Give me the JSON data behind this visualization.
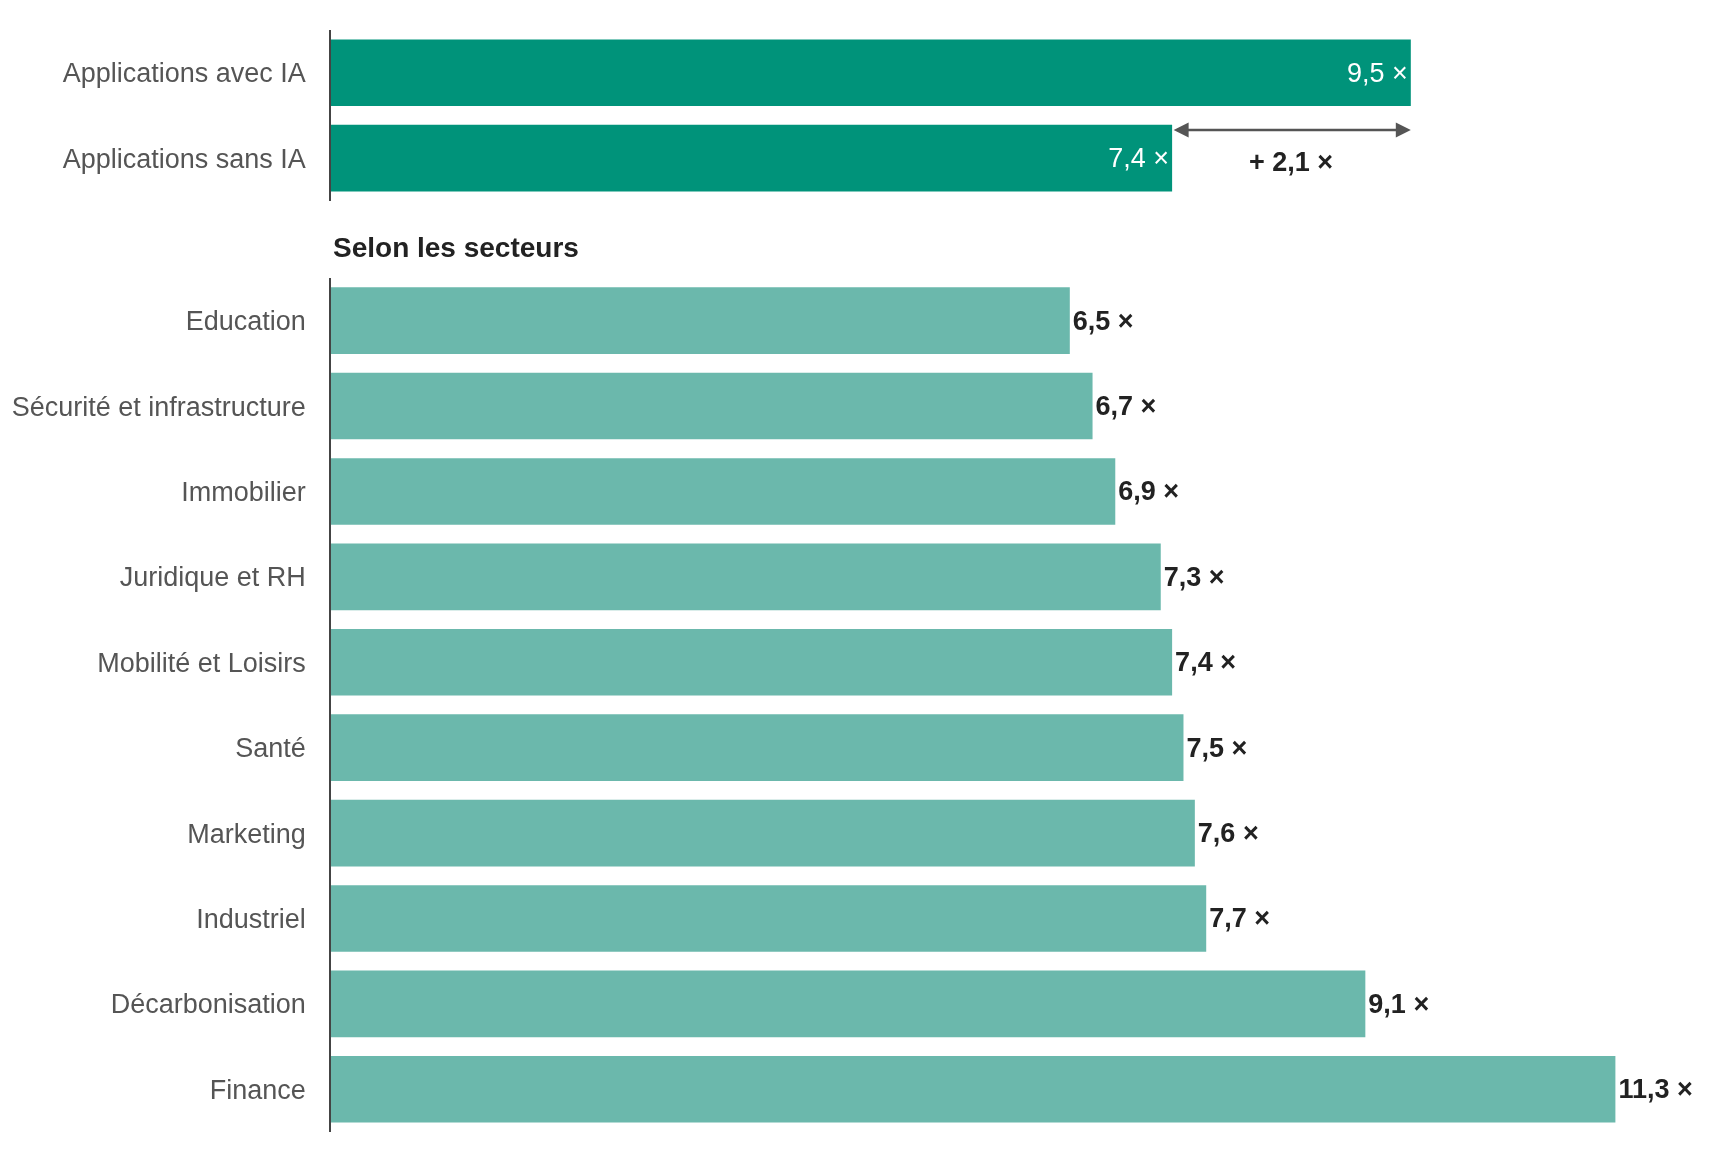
{
  "chart_data": [
    {
      "type": "bar",
      "orientation": "horizontal",
      "categories": [
        "Applications avec IA",
        "Applications sans IA"
      ],
      "values": [
        9.5,
        7.4
      ],
      "value_labels": [
        "9,5 ×",
        "7,4 ×"
      ],
      "color": "#00937a",
      "tick_labels": "y",
      "annotations": [
        "+ 2,1 ×"
      ]
    },
    {
      "type": "bar",
      "orientation": "horizontal",
      "title": "Selon les secteurs",
      "categories": [
        "Education",
        "Sécurité et infrastructure",
        "Immobilier",
        "Juridique et RH",
        "Mobilité et Loisirs",
        "Santé",
        "Marketing",
        "Industriel",
        "Décarbonisation",
        "Finance"
      ],
      "values": [
        6.5,
        6.7,
        6.9,
        7.3,
        7.4,
        7.5,
        7.6,
        7.7,
        9.1,
        11.3
      ],
      "value_labels": [
        "6,5 ×",
        "6,7 ×",
        "6,9 ×",
        "7,3 ×",
        "7,4 ×",
        "7,5 ×",
        "7,6 ×",
        "7,7 ×",
        "9,1 ×",
        "11,3 ×"
      ],
      "color": "#6bb8ac",
      "tick_labels": "y"
    }
  ]
}
